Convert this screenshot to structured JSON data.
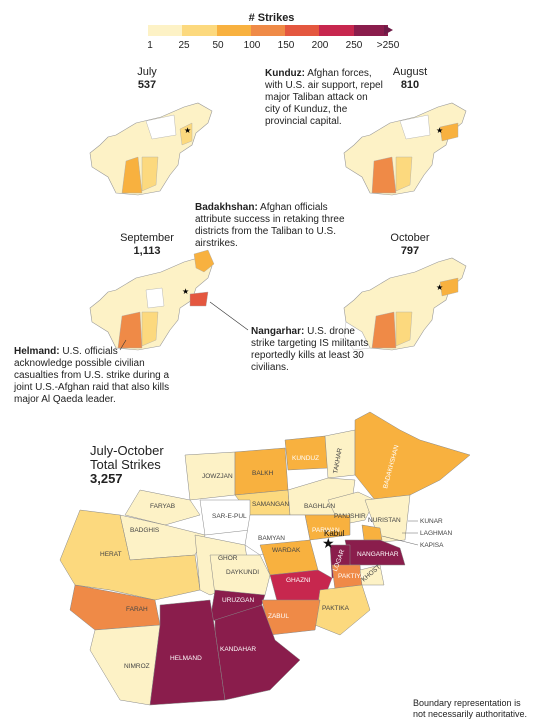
{
  "legend": {
    "title": "# Strikes",
    "labels": [
      "1",
      "25",
      "50",
      "100",
      "150",
      "200",
      "250",
      ">250"
    ],
    "colors": [
      "#fdf2c6",
      "#fcd97e",
      "#f8b13f",
      "#ef8a47",
      "#e4573f",
      "#c7274e",
      "#8a1d4c",
      "#6e1b47"
    ]
  },
  "months": [
    {
      "name": "July",
      "value": "537"
    },
    {
      "name": "August",
      "value": "810"
    },
    {
      "name": "September",
      "value": "1,113"
    },
    {
      "name": "October",
      "value": "797"
    }
  ],
  "annotations": {
    "kunduz": {
      "bold": "Kunduz:",
      "text": " Afghan forces, with U.S. air support, repel major Taliban attack on city of Kunduz, the provincial capital."
    },
    "badakhshan": {
      "bold": "Badakhshan:",
      "text": " Afghan officials attribute success in retaking three districts from the Taliban to U.S. airstrikes."
    },
    "nangarhar": {
      "bold": "Nangarhar:",
      "text": " U.S. drone strike targeting IS militants reportedly kills at least 30 civilians."
    },
    "helmand": {
      "bold": "Helmand:",
      "text": " U.S. officials acknowledge possible civilian casualties from U.S. strike during a joint U.S.-Afghan raid that also kills major Al Qaeda leader."
    }
  },
  "total": {
    "title_line1": "July-October",
    "title_line2": "Total Strikes",
    "value": "3,257"
  },
  "capital": "Kabul",
  "provinces": {
    "jowzjan": "JOWZJAN",
    "balkh": "BALKH",
    "kunduz": "KUNDUZ",
    "takhar": "TAKHAR",
    "badakhshan": "BADAKHSHAN",
    "faryab": "FARYAB",
    "samangan": "SAMANGAN",
    "baghlan": "BAGHLAN",
    "sarepul": "SAR-E-PUL",
    "badghis": "BADGHIS",
    "panjshir": "PANJSHIR",
    "nuristan": "NURISTAN",
    "parwan": "PARWAN",
    "kunar": "KUNAR",
    "bamyan": "BAMYAN",
    "laghman": "LAGHMAN",
    "kapisa": "KAPISA",
    "herat": "HERAT",
    "ghor": "GHOR",
    "wardak": "WARDAK",
    "nangarhar": "NANGARHAR",
    "logar": "LOGAR",
    "daykundi": "DAYKUNDI",
    "ghazni": "GHAZNI",
    "paktiya": "PAKTIYA",
    "khost": "KHOST",
    "uruzgan": "URUZGAN",
    "farah": "FARAH",
    "paktika": "PAKTIKA",
    "zabul": "ZABUL",
    "nimroz": "NIMROZ",
    "helmand": "HELMAND",
    "kandahar": "KANDAHAR"
  },
  "footer": "Boundary representation is not necessarily authoritative."
}
